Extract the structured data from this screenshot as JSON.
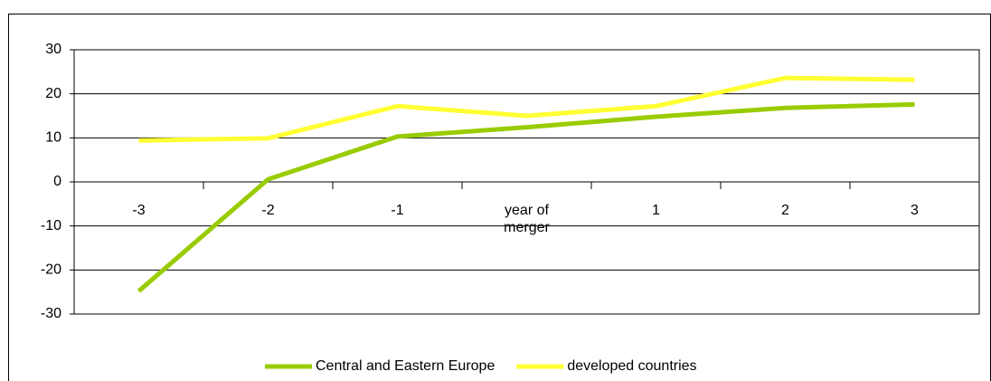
{
  "chart_data": {
    "type": "line",
    "categories": [
      "-3",
      "-2",
      "-1",
      "year of merger",
      "1",
      "2",
      "3"
    ],
    "series": [
      {
        "name": "Central and Eastern Europe",
        "color": "#99cc00",
        "values": [
          -24.8,
          0.6,
          10.3,
          12.4,
          14.8,
          16.8,
          17.6
        ]
      },
      {
        "name": "developed countries",
        "color": "#ffff33",
        "values": [
          9.4,
          9.9,
          17.2,
          15.0,
          17.2,
          23.6,
          23.2
        ]
      }
    ],
    "ylim": [
      -30,
      30
    ],
    "yticks": [
      -30,
      -20,
      -10,
      0,
      10,
      20,
      30
    ],
    "grid": true,
    "legend": "bottom"
  }
}
